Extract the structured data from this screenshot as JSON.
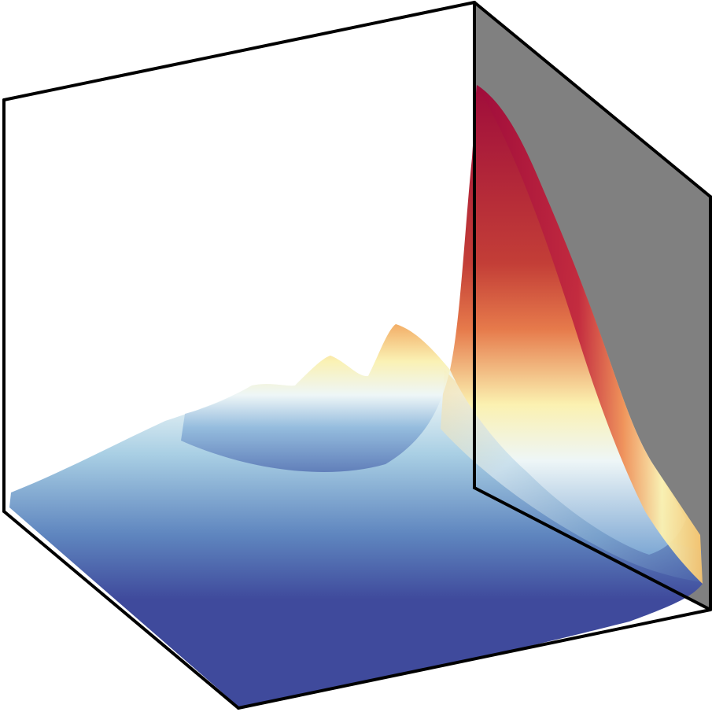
{
  "chart_data": {
    "type": "surface3d",
    "title": "",
    "xlabel": "",
    "ylabel": "",
    "zlabel": "",
    "axes_visible": false,
    "grid": false,
    "colormap": [
      "#3f4a9c",
      "#5f86bf",
      "#a9cfe4",
      "#eef6f7",
      "#fbf1b0",
      "#f6ad63",
      "#d35a3d",
      "#9f0c3b"
    ],
    "back_wall_color": "#808080",
    "box_edge_color": "#000000",
    "peaks": [
      {
        "x": 0.31,
        "y": 0.9,
        "z": 0.12
      },
      {
        "x": 0.42,
        "y": 0.9,
        "z": 0.17
      },
      {
        "x": 0.56,
        "y": 0.9,
        "z": 0.22
      },
      {
        "x": 0.77,
        "y": 0.92,
        "z": 0.18
      },
      {
        "x": 1.0,
        "y": 1.0,
        "z": 1.0
      }
    ]
  }
}
